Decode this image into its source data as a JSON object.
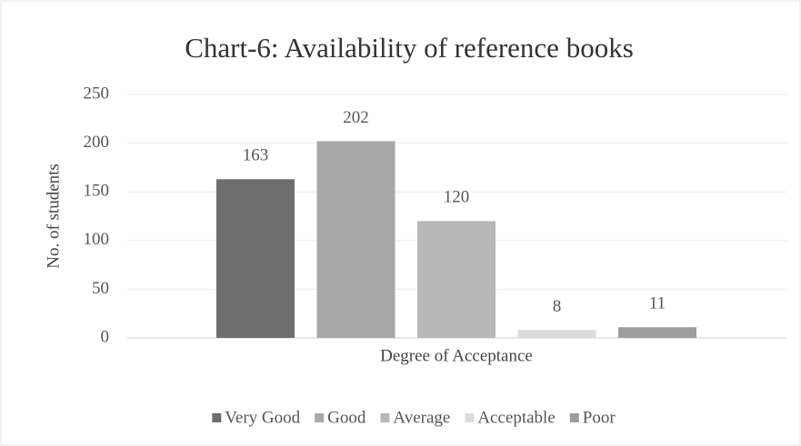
{
  "chart_data": {
    "type": "bar",
    "title": "Chart-6: Availability of reference books",
    "y_label": "No. of students",
    "categories": [
      "Degree of Acceptance"
    ],
    "series": [
      {
        "name": "Very Good",
        "color": "#6e6e6e",
        "values": [
          163
        ]
      },
      {
        "name": "Good",
        "color": "#a8a8a8",
        "values": [
          202
        ]
      },
      {
        "name": "Average",
        "color": "#b8b8b8",
        "values": [
          120
        ]
      },
      {
        "name": "Acceptable",
        "color": "#dcdcdc",
        "values": [
          8
        ]
      },
      {
        "name": "Poor",
        "color": "#9c9c9c",
        "values": [
          11
        ]
      }
    ],
    "ylim": [
      0,
      250
    ],
    "yticks": [
      0,
      50,
      100,
      150,
      200,
      250
    ],
    "grid": true,
    "legend": "bottom"
  }
}
